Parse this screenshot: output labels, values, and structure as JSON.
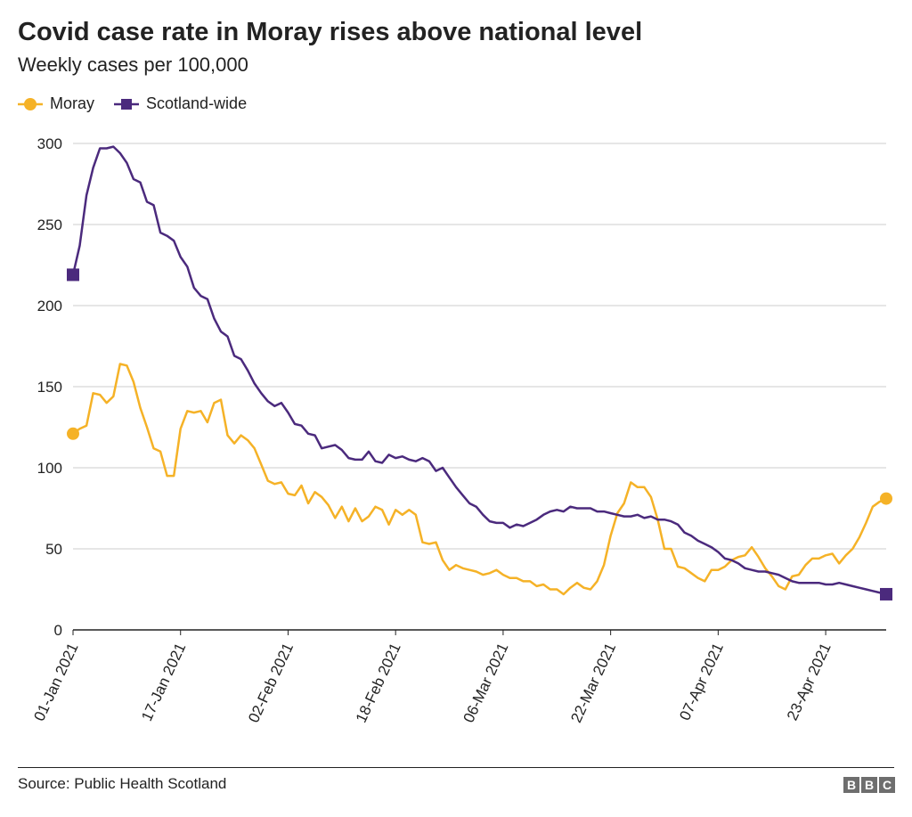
{
  "header": {
    "title": "Covid case rate in Moray rises above national level",
    "subtitle": "Weekly cases per 100,000"
  },
  "footer": {
    "source": "Source: Public Health Scotland",
    "logo_letters": [
      "B",
      "B",
      "C"
    ]
  },
  "colors": {
    "moray": "#f5b227",
    "scotland": "#4b2a7d",
    "grid": "#cccccc",
    "axis": "#222222"
  },
  "chart_data": {
    "type": "line",
    "x_start": "01-Jan-2021",
    "x_end": "30-Apr-2021",
    "xticks": [
      "01-Jan 2021",
      "17-Jan 2021",
      "02-Feb 2021",
      "18-Feb 2021",
      "06-Mar 2021",
      "22-Mar 2021",
      "07-Apr 2021",
      "23-Apr 2021"
    ],
    "yticks": [
      "0",
      "50",
      "100",
      "150",
      "200",
      "250",
      "300"
    ],
    "ylim": [
      0,
      300
    ],
    "grid": true,
    "legend_position": "top-left",
    "series": [
      {
        "name": "Moray",
        "marker": "circle",
        "values": [
          121,
          124,
          126,
          146,
          145,
          140,
          144,
          164,
          163,
          153,
          137,
          125,
          112,
          110,
          95,
          95,
          124,
          135,
          134,
          135,
          128,
          140,
          142,
          120,
          115,
          120,
          117,
          112,
          102,
          92,
          90,
          91,
          84,
          83,
          89,
          78,
          85,
          82,
          77,
          69,
          76,
          67,
          75,
          67,
          70,
          76,
          74,
          65,
          74,
          71,
          74,
          71,
          54,
          53,
          54,
          43,
          37,
          40,
          38,
          37,
          36,
          34,
          35,
          37,
          34,
          32,
          32,
          30,
          30,
          27,
          28,
          25,
          25,
          22,
          26,
          29,
          26,
          25,
          30,
          40,
          58,
          72,
          78,
          91,
          88,
          88,
          82,
          68,
          50,
          50,
          39,
          38,
          35,
          32,
          30,
          37,
          37,
          39,
          43,
          45,
          46,
          51,
          45,
          38,
          33,
          27,
          25,
          33,
          34,
          40,
          44,
          44,
          46,
          47,
          41,
          46,
          50,
          57,
          66,
          76,
          79,
          81
        ]
      },
      {
        "name": "Scotland-wide",
        "marker": "square",
        "values": [
          219,
          237,
          268,
          285,
          297,
          297,
          298,
          294,
          288,
          278,
          276,
          264,
          262,
          245,
          243,
          240,
          230,
          224,
          211,
          206,
          204,
          192,
          184,
          181,
          169,
          167,
          160,
          152,
          146,
          141,
          138,
          140,
          134,
          127,
          126,
          121,
          120,
          112,
          113,
          114,
          111,
          106,
          105,
          105,
          110,
          104,
          103,
          108,
          106,
          107,
          105,
          104,
          106,
          104,
          98,
          100,
          94,
          88,
          83,
          78,
          76,
          71,
          67,
          66,
          66,
          63,
          65,
          64,
          66,
          68,
          71,
          73,
          74,
          73,
          76,
          75,
          75,
          75,
          73,
          73,
          72,
          71,
          70,
          70,
          71,
          69,
          70,
          68,
          68,
          67,
          65,
          60,
          58,
          55,
          53,
          51,
          48,
          44,
          43,
          41,
          38,
          37,
          36,
          36,
          35,
          34,
          32,
          30,
          29,
          29,
          29,
          29,
          28,
          28,
          29,
          28,
          27,
          26,
          25,
          24,
          23,
          22
        ]
      }
    ]
  }
}
